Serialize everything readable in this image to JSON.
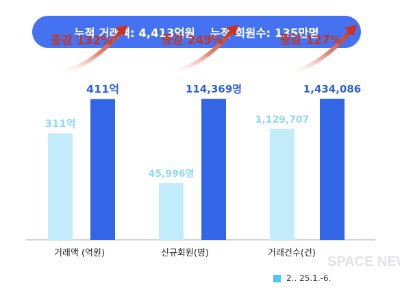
{
  "banner": {
    "cumulative_volume": "누적 거래액: 4,413억원",
    "cumulative_members": "누적 회원수: 135만명"
  },
  "legend": {
    "label": "2..  25.1.-6."
  },
  "watermark": "SPACE NEWS",
  "colors": {
    "banner": "#4572f0",
    "prev_bar": "#c3ecfb",
    "curr_bar": "#3366e6",
    "prev_label": "#8fd9f7",
    "curr_label": "#2f5fdf",
    "growth": "#c8341f"
  },
  "chart_data": [
    {
      "type": "bar",
      "category": "거래액 (억원)",
      "values": [
        311,
        411
      ],
      "value_labels": [
        "311억",
        "411억"
      ],
      "growth_label": "증감 132%",
      "ylim": [
        0,
        540
      ]
    },
    {
      "type": "bar",
      "category": "신규회원(명)",
      "values": [
        45996,
        114369
      ],
      "value_labels": [
        "45,996명",
        "114,369명"
      ],
      "growth_label": "증감 249%",
      "ylim": [
        0,
        150000
      ]
    },
    {
      "type": "bar",
      "category": "거래건수(건)",
      "values": [
        1129707,
        1434086
      ],
      "value_labels": [
        "1,129,707",
        "1,434,086"
      ],
      "growth_label": "증감 127%",
      "ylim": [
        0,
        1880000
      ]
    }
  ]
}
